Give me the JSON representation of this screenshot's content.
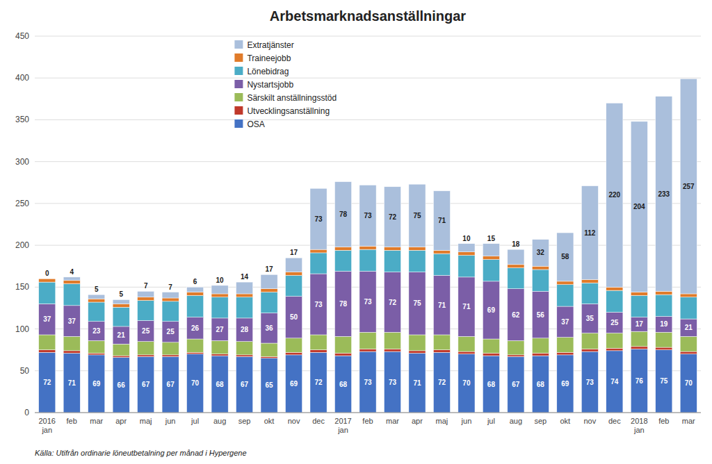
{
  "chart_data": {
    "type": "bar",
    "stacked": true,
    "title": "Arbetsmarknadsanställningar",
    "annotation": "Källa: Utifrån ordinarie löneutbetalning per månad i Hypergene",
    "categories": [
      "2016\njan",
      "feb",
      "mar",
      "apr",
      "maj",
      "jun",
      "jul",
      "aug",
      "sep",
      "okt",
      "nov",
      "dec",
      "2017\njan",
      "feb",
      "mar",
      "apr",
      "maj",
      "jun",
      "jul",
      "aug",
      "sep",
      "okt",
      "nov",
      "dec",
      "2018\njan",
      "feb",
      "mar"
    ],
    "series": [
      {
        "name": "OSA",
        "color": "#4472c4",
        "data_labels": true,
        "values": [
          72,
          71,
          69,
          66,
          67,
          67,
          70,
          68,
          67,
          65,
          69,
          72,
          68,
          73,
          73,
          71,
          72,
          70,
          68,
          67,
          68,
          69,
          73,
          74,
          76,
          75,
          70
        ]
      },
      {
        "name": "Utvecklingsanställning",
        "color": "#c0392b",
        "values": [
          3,
          3,
          2,
          2,
          2,
          2,
          2,
          2,
          2,
          2,
          3,
          3,
          3,
          3,
          3,
          3,
          3,
          3,
          3,
          2,
          3,
          3,
          3,
          3,
          3,
          3,
          3
        ]
      },
      {
        "name": "Särskilt anställningsstöd",
        "color": "#9bbb59",
        "values": [
          18,
          17,
          15,
          14,
          16,
          15,
          16,
          16,
          16,
          16,
          17,
          18,
          20,
          20,
          20,
          19,
          18,
          18,
          17,
          17,
          18,
          18,
          19,
          18,
          18,
          18,
          18
        ]
      },
      {
        "name": "Nystartsjobb",
        "color": "#7b5ea7",
        "data_labels": true,
        "values": [
          37,
          37,
          23,
          21,
          25,
          25,
          26,
          27,
          28,
          36,
          50,
          73,
          78,
          73,
          72,
          75,
          71,
          71,
          69,
          62,
          56,
          37,
          35,
          25,
          17,
          19,
          21
        ]
      },
      {
        "name": "Lönebidrag",
        "color": "#4bacc6",
        "values": [
          26,
          26,
          23,
          23,
          24,
          24,
          26,
          25,
          25,
          25,
          25,
          25,
          25,
          26,
          26,
          26,
          26,
          26,
          26,
          25,
          26,
          26,
          25,
          26,
          26,
          26,
          26
        ]
      },
      {
        "name": "Traineejobb",
        "color": "#e07b2a",
        "values": [
          4,
          4,
          4,
          4,
          4,
          4,
          4,
          4,
          4,
          4,
          4,
          4,
          4,
          4,
          4,
          4,
          4,
          4,
          4,
          4,
          4,
          4,
          4,
          4,
          4,
          4,
          4
        ]
      },
      {
        "name": "Extratjänster",
        "color": "#aabfdc",
        "data_labels": true,
        "values": [
          0,
          4,
          5,
          5,
          7,
          7,
          6,
          10,
          14,
          17,
          17,
          73,
          78,
          73,
          72,
          75,
          71,
          10,
          15,
          18,
          32,
          58,
          112,
          220,
          204,
          233,
          257
        ]
      }
    ],
    "ylim": [
      0,
      450
    ],
    "yticks": [
      0,
      50,
      100,
      150,
      200,
      250,
      300,
      350,
      400,
      450
    ],
    "grid": true,
    "legend": "upper left"
  }
}
